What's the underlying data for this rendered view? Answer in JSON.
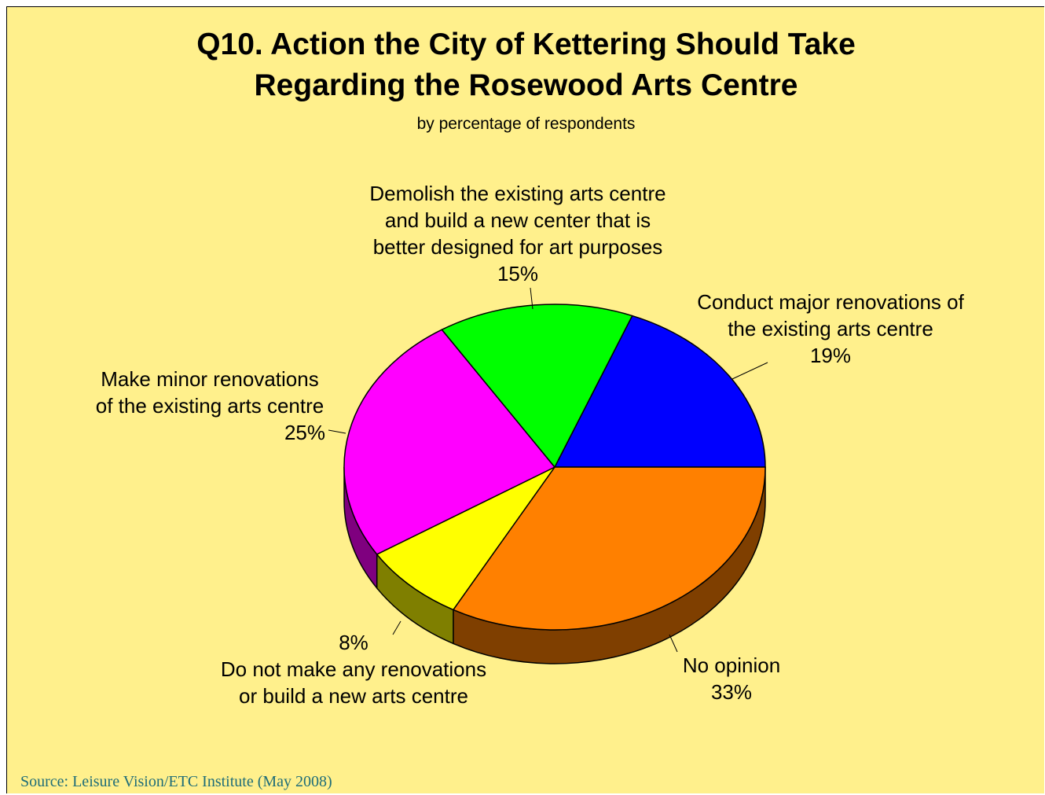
{
  "chart_data": {
    "type": "pie",
    "title": [
      "Q10. Action the City of Kettering Should Take",
      "Regarding the Rosewood Arts Centre"
    ],
    "subtitle": "by percentage of respondents",
    "slices": [
      {
        "label": [
          "Conduct major renovations of",
          "the existing arts centre"
        ],
        "value": 19,
        "value_label": "19%",
        "color": "#0000FF",
        "side_color": "#00007F"
      },
      {
        "label": [
          "No opinion"
        ],
        "value": 33,
        "value_label": "33%",
        "color": "#FF8000",
        "side_color": "#7F3F00"
      },
      {
        "label": [
          "Do not make any renovations",
          "or build a new arts centre"
        ],
        "value": 8,
        "value_label": "8%",
        "color": "#FFFF00",
        "side_color": "#7F7F00"
      },
      {
        "label": [
          "Make minor renovations",
          "of the existing arts centre"
        ],
        "value": 25,
        "value_label": "25%",
        "color": "#FF00FF",
        "side_color": "#7F007F"
      },
      {
        "label": [
          "Demolish the existing arts centre",
          "and build a new center that is",
          "better designed for art purposes"
        ],
        "value": 15,
        "value_label": "15%",
        "color": "#00FF00",
        "side_color": "#007F00"
      }
    ],
    "source": "Source:  Leisure Vision/ETC Institute (May 2008)"
  }
}
